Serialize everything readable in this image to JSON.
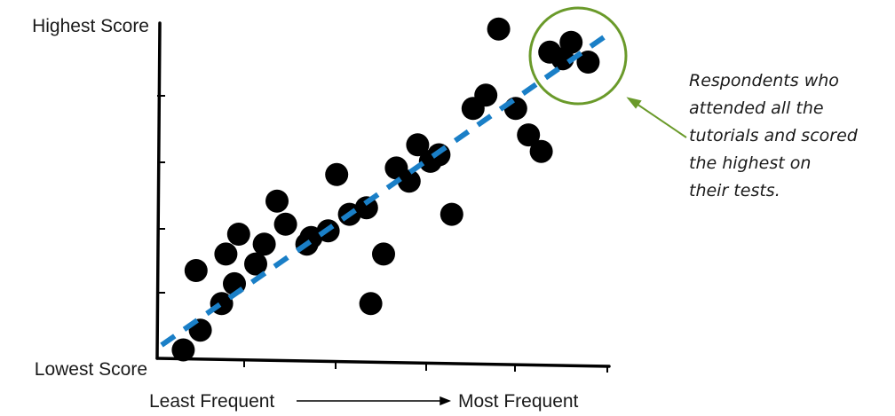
{
  "chart_data": {
    "type": "scatter",
    "ylabel_top": "Highest Score",
    "ylabel_bottom": "Lowest Score",
    "xlabel_left": "Least Frequent",
    "xlabel_right": "Most Frequent",
    "points": [
      [
        0.03,
        0.02
      ],
      [
        0.07,
        0.08
      ],
      [
        0.12,
        0.16
      ],
      [
        0.06,
        0.26
      ],
      [
        0.13,
        0.31
      ],
      [
        0.16,
        0.37
      ],
      [
        0.15,
        0.22
      ],
      [
        0.2,
        0.28
      ],
      [
        0.22,
        0.34
      ],
      [
        0.27,
        0.4
      ],
      [
        0.25,
        0.47
      ],
      [
        0.32,
        0.34
      ],
      [
        0.33,
        0.36
      ],
      [
        0.37,
        0.38
      ],
      [
        0.39,
        0.55
      ],
      [
        0.42,
        0.43
      ],
      [
        0.46,
        0.45
      ],
      [
        0.47,
        0.16
      ],
      [
        0.5,
        0.31
      ],
      [
        0.53,
        0.57
      ],
      [
        0.56,
        0.53
      ],
      [
        0.58,
        0.64
      ],
      [
        0.61,
        0.59
      ],
      [
        0.63,
        0.61
      ],
      [
        0.66,
        0.43
      ],
      [
        0.71,
        0.75
      ],
      [
        0.74,
        0.79
      ],
      [
        0.77,
        0.99
      ],
      [
        0.81,
        0.75
      ],
      [
        0.84,
        0.67
      ],
      [
        0.87,
        0.62
      ],
      [
        0.89,
        0.92
      ],
      [
        0.92,
        0.9
      ],
      [
        0.94,
        0.95
      ],
      [
        0.98,
        0.89
      ]
    ],
    "trendline": {
      "x": [
        0.0,
        1.0
      ],
      "y": [
        0.04,
        0.98
      ]
    },
    "colors": {
      "points": "#000000",
      "trendline": "#1a7fc7",
      "highlight": "#6a9a2a",
      "axis": "#000000"
    }
  },
  "annotation": {
    "lines": [
      "Respondents who",
      "attended all the",
      "tutorials and scored",
      "the highest on",
      "their tests."
    ]
  }
}
